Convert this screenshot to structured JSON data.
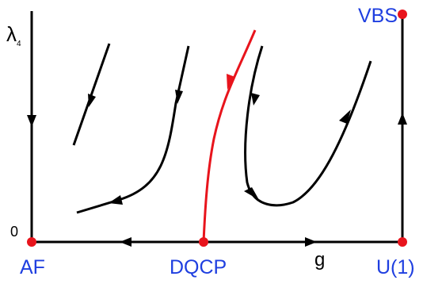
{
  "axes": {
    "y_label_main": "λ",
    "y_label_sub": "4",
    "origin_label": "0",
    "x_label": "g"
  },
  "fixed_points": [
    {
      "id": "af",
      "label": "AF"
    },
    {
      "id": "dqcp",
      "label": "DQCP"
    },
    {
      "id": "u1",
      "label": "U(1)"
    },
    {
      "id": "vbs",
      "label": "VBS"
    }
  ],
  "colors": {
    "fixed_point": "#e8141c",
    "label": "#1f3fe0",
    "flow_line": "#000000",
    "separatrix": "#e8141c"
  }
}
